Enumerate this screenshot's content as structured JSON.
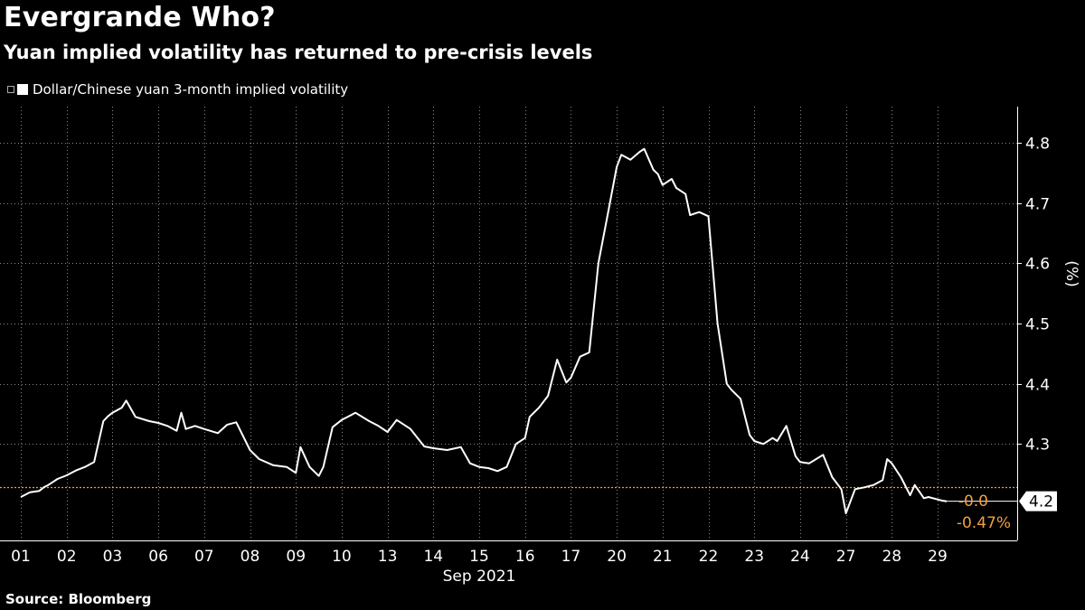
{
  "header": {
    "title": "Evergrande Who?",
    "subtitle": "Yuan implied volatility has returned to pre-crisis levels"
  },
  "footer": {
    "source": "Source: Bloomberg"
  },
  "colors": {
    "background": "#000000",
    "series": "#ffffff",
    "reference": "#f0a040",
    "grid": "#888888"
  },
  "chart_data": {
    "type": "line",
    "title": "Evergrande Who?",
    "subtitle": "Yuan implied volatility has returned to pre-crisis levels",
    "legend": [
      "Dollar/Chinese yuan 3-month implied volatility"
    ],
    "legend_position": "top-left",
    "xlabel": "Sep 2021",
    "ylabel": "(%)",
    "ylim": [
      4.14,
      4.86
    ],
    "yticks": [
      4.3,
      4.4,
      4.5,
      4.6,
      4.7,
      4.8
    ],
    "yticklabels": [
      "4.3",
      "4.4",
      "4.5",
      "4.6",
      "4.7",
      "4.8"
    ],
    "categories": [
      "01",
      "02",
      "03",
      "06",
      "07",
      "08",
      "09",
      "10",
      "13",
      "14",
      "15",
      "16",
      "17",
      "20",
      "21",
      "22",
      "23",
      "24",
      "27",
      "28",
      "29"
    ],
    "last_value_label": "4.2",
    "reference_value": 4.228,
    "change_labels": [
      "-0.0",
      "-0.47%"
    ],
    "series": [
      {
        "name": "Dollar/Chinese yuan 3-month implied volatility",
        "x": [
          0,
          0.2,
          0.4,
          0.5,
          0.6,
          0.8,
          1.0,
          1.2,
          1.4,
          1.6,
          1.8,
          1.9,
          2.0,
          2.2,
          2.3,
          2.5,
          2.8,
          3.0,
          3.2,
          3.4,
          3.5,
          3.6,
          3.8,
          4.0,
          4.3,
          4.5,
          4.7,
          5.0,
          5.2,
          5.5,
          5.8,
          6.0,
          6.1,
          6.3,
          6.5,
          6.6,
          6.8,
          7.0,
          7.3,
          7.6,
          7.8,
          8.0,
          8.2,
          8.5,
          8.8,
          9.0,
          9.3,
          9.6,
          9.8,
          10.0,
          10.2,
          10.4,
          10.6,
          10.8,
          11.0,
          11.1,
          11.3,
          11.5,
          11.7,
          11.9,
          12.0,
          12.2,
          12.4,
          12.6,
          12.8,
          13.0,
          13.1,
          13.3,
          13.5,
          13.6,
          13.8,
          13.9,
          14.0,
          14.2,
          14.3,
          14.5,
          14.6,
          14.8,
          15.0,
          15.2,
          15.4,
          15.5,
          15.7,
          15.9,
          16.0,
          16.2,
          16.4,
          16.5,
          16.7,
          16.9,
          17.0,
          17.2,
          17.5,
          17.7,
          17.9,
          18.0,
          18.2,
          18.4,
          18.6,
          18.8,
          18.9,
          19.0,
          19.2,
          19.4,
          19.5,
          19.7,
          19.8,
          19.9,
          20.0,
          20.1,
          20.2
        ],
        "values": [
          4.212,
          4.22,
          4.222,
          4.228,
          4.232,
          4.242,
          4.248,
          4.256,
          4.262,
          4.27,
          4.338,
          4.346,
          4.352,
          4.36,
          4.372,
          4.345,
          4.338,
          4.335,
          4.33,
          4.322,
          4.352,
          4.325,
          4.33,
          4.325,
          4.318,
          4.332,
          4.336,
          4.29,
          4.275,
          4.265,
          4.262,
          4.252,
          4.295,
          4.262,
          4.247,
          4.262,
          4.328,
          4.34,
          4.352,
          4.338,
          4.33,
          4.32,
          4.34,
          4.325,
          4.296,
          4.293,
          4.29,
          4.295,
          4.268,
          4.262,
          4.26,
          4.255,
          4.262,
          4.3,
          4.31,
          4.345,
          4.36,
          4.38,
          4.44,
          4.402,
          4.41,
          4.445,
          4.452,
          4.6,
          4.68,
          4.76,
          4.78,
          4.772,
          4.785,
          4.79,
          4.755,
          4.748,
          4.73,
          4.74,
          4.725,
          4.715,
          4.68,
          4.685,
          4.678,
          4.5,
          4.4,
          4.39,
          4.375,
          4.315,
          4.305,
          4.3,
          4.31,
          4.305,
          4.33,
          4.28,
          4.27,
          4.268,
          4.282,
          4.245,
          4.225,
          4.185,
          4.225,
          4.228,
          4.232,
          4.24,
          4.275,
          4.268,
          4.245,
          4.215,
          4.232,
          4.21,
          4.212,
          4.21,
          4.208,
          4.206,
          4.205
        ]
      }
    ]
  }
}
